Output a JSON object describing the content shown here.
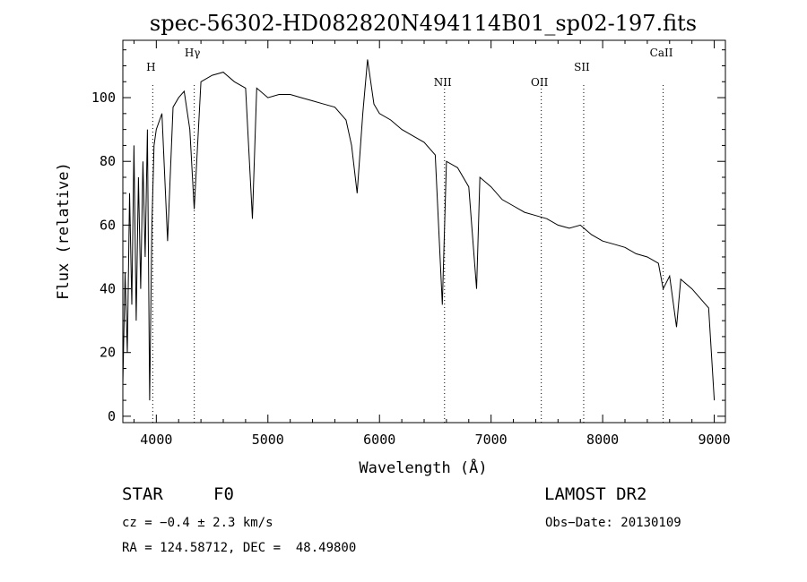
{
  "chart_data": {
    "type": "line",
    "title": "spec-56302-HD082820N494114B01_sp02-197.fits",
    "xlabel": "Wavelength (Å)",
    "ylabel": "Flux (relative)",
    "xlim": [
      3700,
      9100
    ],
    "ylim": [
      -2,
      118
    ],
    "x_ticks": [
      4000,
      5000,
      6000,
      7000,
      8000,
      9000
    ],
    "y_ticks": [
      0,
      20,
      40,
      60,
      80,
      100
    ],
    "grid": false,
    "line_markers": [
      {
        "label": "H",
        "x": 3968
      },
      {
        "label": "Hγ",
        "x": 4340
      },
      {
        "label": "NII",
        "x": 6583
      },
      {
        "label": "OII",
        "x": 7450
      },
      {
        "label": "SII",
        "x": 7830
      },
      {
        "label": "CaII",
        "x": 8542
      }
    ],
    "series": [
      {
        "x": [
          3700,
          3720,
          3740,
          3760,
          3780,
          3800,
          3820,
          3840,
          3860,
          3880,
          3900,
          3920,
          3940,
          3960,
          3980,
          4000,
          4050,
          4101,
          4150,
          4200,
          4250,
          4300,
          4340,
          4400,
          4500,
          4600,
          4700,
          4800,
          4861,
          4900,
          5000,
          5100,
          5200,
          5300,
          5400,
          5500,
          5600,
          5700,
          5750,
          5800,
          5850,
          5893,
          5950,
          6000,
          6100,
          6200,
          6300,
          6400,
          6500,
          6563,
          6600,
          6700,
          6800,
          6870,
          6900,
          7000,
          7100,
          7200,
          7300,
          7400,
          7500,
          7600,
          7700,
          7800,
          7900,
          8000,
          8100,
          8200,
          8300,
          8400,
          8500,
          8542,
          8600,
          8662,
          8700,
          8800,
          8900,
          8950,
          9000
        ],
        "y": [
          10,
          45,
          20,
          70,
          35,
          85,
          30,
          75,
          40,
          80,
          50,
          90,
          5,
          60,
          85,
          90,
          95,
          55,
          97,
          100,
          102,
          90,
          65,
          105,
          107,
          108,
          105,
          103,
          62,
          103,
          100,
          101,
          101,
          100,
          99,
          98,
          97,
          93,
          85,
          70,
          95,
          112,
          98,
          95,
          93,
          90,
          88,
          86,
          82,
          35,
          80,
          78,
          72,
          40,
          75,
          72,
          68,
          66,
          64,
          63,
          62,
          60,
          59,
          60,
          57,
          55,
          54,
          53,
          51,
          50,
          48,
          40,
          44,
          28,
          43,
          40,
          36,
          34,
          5
        ]
      }
    ]
  },
  "info": {
    "object_type": "STAR",
    "subclass": "F0",
    "survey": "LAMOST DR2",
    "cz": "cz = −0.4 ± 2.3 km/s",
    "obs_date": "Obs−Date: 20130109",
    "coords": "RA = 124.58712, DEC =  48.49800"
  }
}
